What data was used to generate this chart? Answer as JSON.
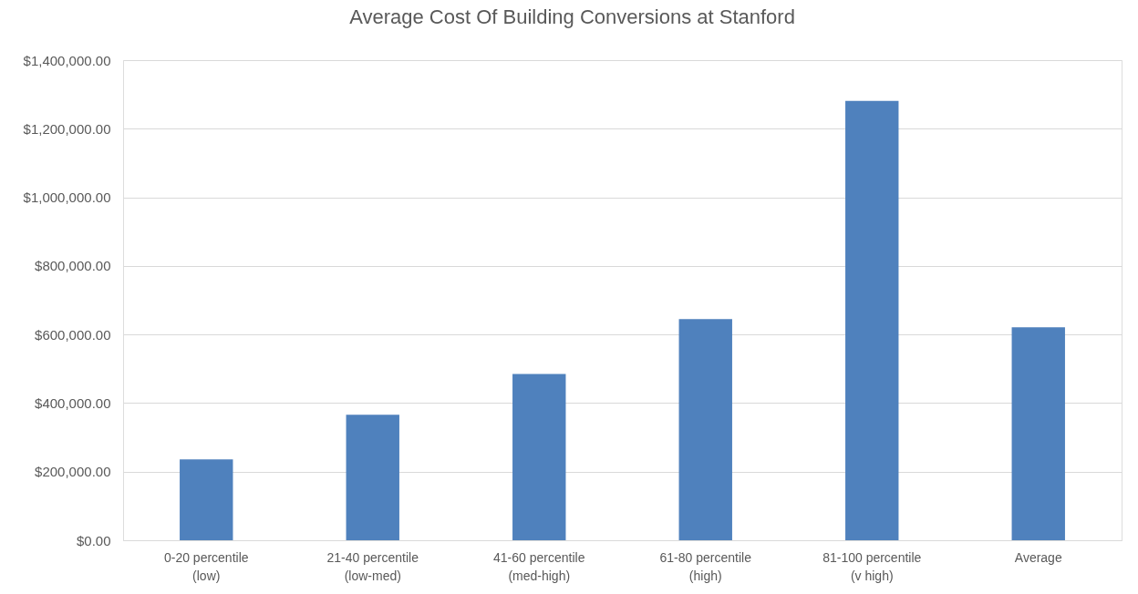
{
  "chart_data": {
    "type": "bar",
    "title": "Average Cost Of Building Conversions at Stanford",
    "categories": [
      "0-20 percentile (low)",
      "21-40 percentile (low-med)",
      "41-60 percentile (med-high)",
      "61-80 percentile (high)",
      "81-100 percentile (v high)",
      "Average"
    ],
    "values": [
      236000,
      366000,
      485000,
      645000,
      1281000,
      621000
    ],
    "color": "#4f81bd",
    "ylim": [
      0,
      1400000
    ],
    "yticks": [
      {
        "value": 0,
        "label": "$0.00"
      },
      {
        "value": 200000,
        "label": "$200,000.00"
      },
      {
        "value": 400000,
        "label": "$400,000.00"
      },
      {
        "value": 600000,
        "label": "$600,000.00"
      },
      {
        "value": 800000,
        "label": "$800,000.00"
      },
      {
        "value": 1000000,
        "label": "$1,000,000.00"
      },
      {
        "value": 1200000,
        "label": "$1,200,000.00"
      },
      {
        "value": 1400000,
        "label": "$1,400,000.00"
      }
    ],
    "grid": "y"
  }
}
